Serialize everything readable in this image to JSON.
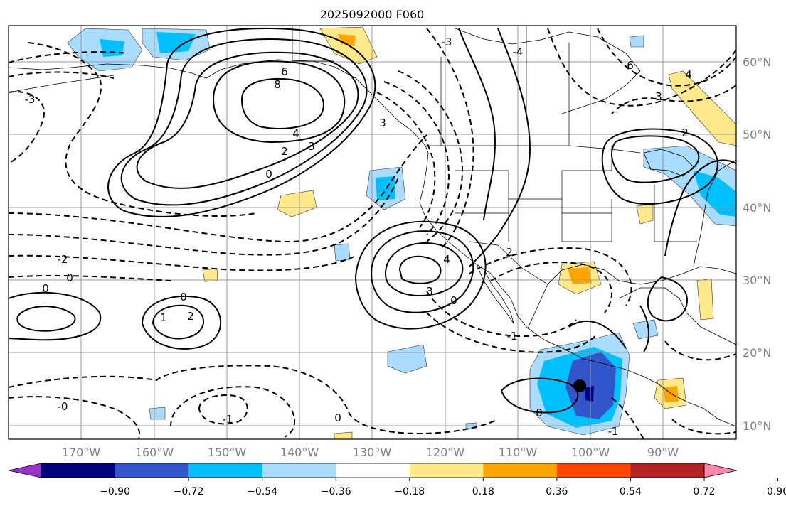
{
  "title": "2025092000 F060",
  "lat_labels": [
    "60°N",
    "50°N",
    "40°N",
    "30°N",
    "20°N",
    "10°N"
  ],
  "lon_labels": [
    "170°W",
    "160°W",
    "150°W",
    "140°W",
    "130°W",
    "120°W",
    "110°W",
    "100°W",
    "90°W"
  ],
  "colorbar": {
    "colors": [
      "#9933cc",
      "#000080",
      "#3355cc",
      "#00bfff",
      "#aadcff",
      "#ffffff",
      "#ffe98a",
      "#ffa500",
      "#ff4500",
      "#b22222",
      "#ff88aa"
    ],
    "tick_labels": [
      "−0.90",
      "−0.72",
      "−0.54",
      "−0.36",
      "−0.18",
      "0.18",
      "0.36",
      "0.54",
      "0.72",
      "0.90"
    ]
  },
  "contour_labels": {
    "c1": "6",
    "c2": "8",
    "c3": "4",
    "c4": "3",
    "c5": "2",
    "c6": "0",
    "c7": "-2",
    "c8": "0",
    "c9": "0",
    "c10": "0",
    "c11": "2",
    "c12": "1",
    "c13": "3",
    "c14": "0",
    "c15": "-1",
    "c16": "-1",
    "c17": "-0",
    "c18": "0",
    "c19": "4",
    "c20": "-3",
    "c21": "-3",
    "c22": "6",
    "c23": "3",
    "c24": "2",
    "c25": "2",
    "c26": "0",
    "c27": "4",
    "c28": "-1",
    "c29": "-4",
    "c30": "3"
  },
  "storm_marker": "tropical-cyclone-center"
}
